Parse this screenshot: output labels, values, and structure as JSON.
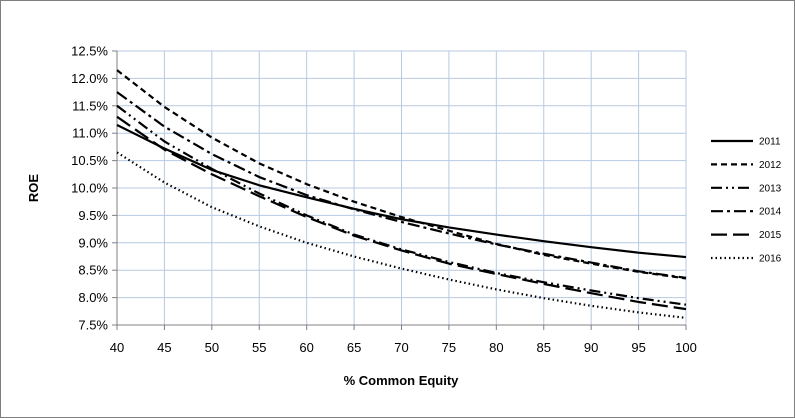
{
  "chart_data": {
    "type": "line",
    "title": "",
    "xlabel": "% Common Equity",
    "ylabel": "ROE",
    "x": [
      40,
      45,
      50,
      55,
      60,
      65,
      70,
      75,
      80,
      85,
      90,
      95,
      100
    ],
    "xlim": [
      40,
      100
    ],
    "ylim": [
      7.5,
      12.5
    ],
    "xticks": [
      "40",
      "45",
      "50",
      "55",
      "60",
      "65",
      "70",
      "75",
      "80",
      "85",
      "90",
      "95",
      "100"
    ],
    "yticks": [
      "7.5%",
      "8.0%",
      "8.5%",
      "9.0%",
      "9.5%",
      "10.0%",
      "10.5%",
      "11.0%",
      "11.5%",
      "12.0%",
      "12.5%"
    ],
    "grid": true,
    "legend_position": "right",
    "series": [
      {
        "name": "2011",
        "dash": "solid",
        "values": [
          11.15,
          10.72,
          10.33,
          10.05,
          9.83,
          9.62,
          9.43,
          9.28,
          9.15,
          9.03,
          8.92,
          8.82,
          8.74
        ]
      },
      {
        "name": "2012",
        "dash": "short-dash",
        "values": [
          12.15,
          11.48,
          10.92,
          10.45,
          10.07,
          9.75,
          9.47,
          9.22,
          8.98,
          8.78,
          8.62,
          8.47,
          8.35
        ]
      },
      {
        "name": "2013",
        "dash": "dash-dot-dot",
        "values": [
          11.5,
          10.85,
          10.35,
          9.9,
          9.5,
          9.15,
          8.88,
          8.65,
          8.45,
          8.28,
          8.13,
          7.99,
          7.87
        ]
      },
      {
        "name": "2014",
        "dash": "dash-dot",
        "values": [
          11.75,
          11.12,
          10.62,
          10.2,
          9.87,
          9.61,
          9.38,
          9.17,
          8.97,
          8.8,
          8.64,
          8.48,
          8.36
        ]
      },
      {
        "name": "2015",
        "dash": "long-dash",
        "values": [
          11.3,
          10.7,
          10.25,
          9.85,
          9.47,
          9.13,
          8.86,
          8.62,
          8.43,
          8.25,
          8.08,
          7.92,
          7.79
        ]
      },
      {
        "name": "2016",
        "dash": "dotted",
        "values": [
          10.65,
          10.1,
          9.65,
          9.3,
          9.0,
          8.75,
          8.53,
          8.33,
          8.15,
          7.99,
          7.85,
          7.73,
          7.63
        ]
      }
    ]
  }
}
